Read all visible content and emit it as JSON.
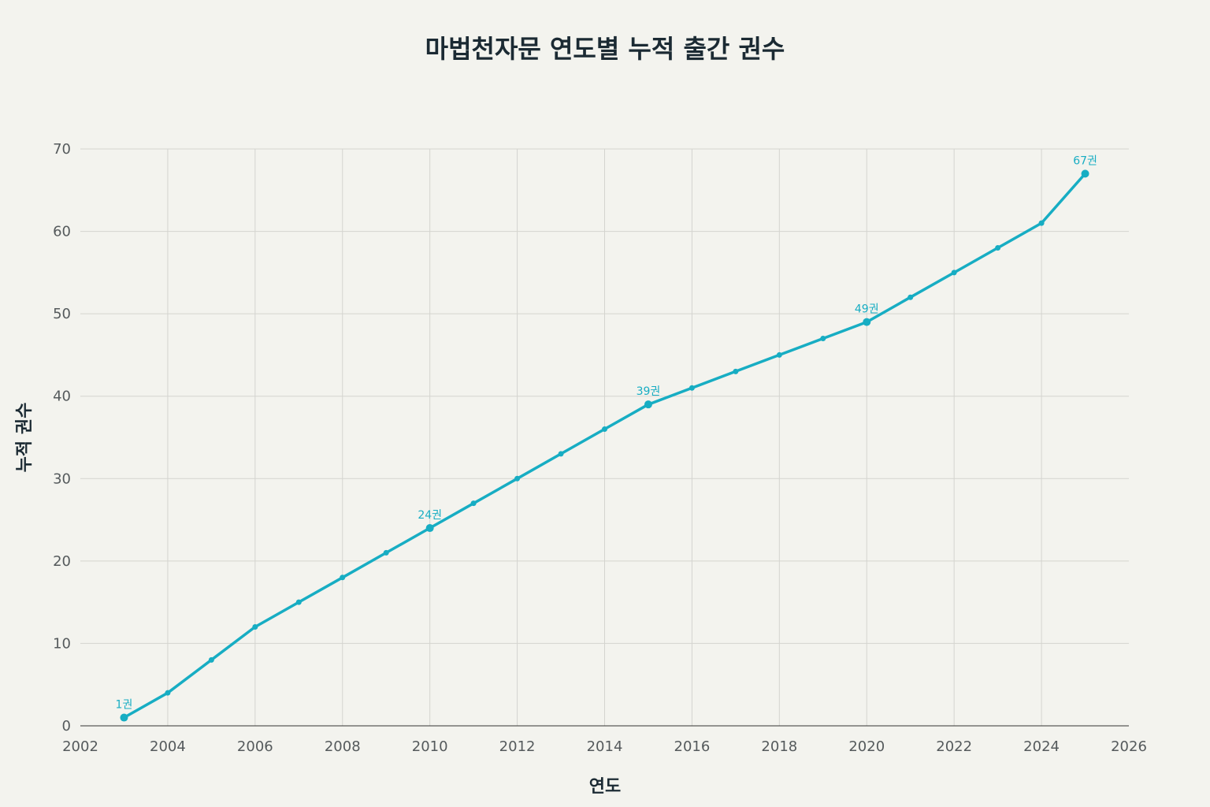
{
  "chart_data": {
    "type": "line",
    "title": "마법천자문 연도별 누적 출간 권수",
    "xlabel": "연도",
    "ylabel": "누적 권수",
    "xlim": [
      2002,
      2026
    ],
    "ylim": [
      0,
      70
    ],
    "x_ticks": [
      2002,
      2004,
      2006,
      2008,
      2010,
      2012,
      2014,
      2016,
      2018,
      2020,
      2022,
      2024,
      2026
    ],
    "y_ticks": [
      0,
      10,
      20,
      30,
      40,
      50,
      60,
      70
    ],
    "grid": true,
    "color": "#17adc3",
    "x": [
      2003,
      2004,
      2005,
      2006,
      2007,
      2008,
      2009,
      2010,
      2011,
      2012,
      2013,
      2014,
      2015,
      2016,
      2017,
      2018,
      2019,
      2020,
      2021,
      2022,
      2023,
      2024,
      2025
    ],
    "y": [
      1,
      4,
      8,
      12,
      15,
      18,
      21,
      24,
      27,
      30,
      33,
      36,
      39,
      41,
      43,
      45,
      47,
      49,
      52,
      55,
      58,
      61,
      67
    ],
    "annotations": [
      {
        "x": 2003,
        "y": 1,
        "text": "1권"
      },
      {
        "x": 2010,
        "y": 24,
        "text": "24권"
      },
      {
        "x": 2015,
        "y": 39,
        "text": "39권"
      },
      {
        "x": 2020,
        "y": 49,
        "text": "49권"
      },
      {
        "x": 2025,
        "y": 67,
        "text": "67권"
      }
    ]
  }
}
